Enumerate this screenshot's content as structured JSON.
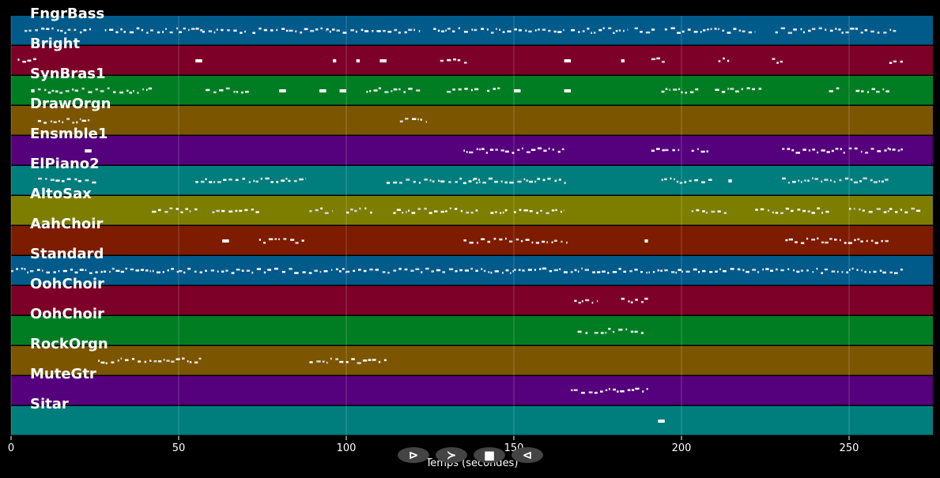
{
  "chart_data": {
    "type": "piano-roll",
    "xlabel": "Temps (secondes)",
    "xlim": [
      0,
      275
    ],
    "xticks": [
      0,
      50,
      100,
      150,
      200,
      250
    ],
    "grid": true,
    "tracks": [
      {
        "name": "FngrBass",
        "color": "#005a8a",
        "segments": [
          [
            4,
            24
          ],
          [
            28,
            58
          ],
          [
            57,
            70
          ],
          [
            72,
            94
          ],
          [
            94,
            122
          ],
          [
            126,
            142
          ],
          [
            142,
            165
          ],
          [
            167,
            184
          ],
          [
            186,
            192
          ],
          [
            195,
            222
          ],
          [
            228,
            264
          ]
        ]
      },
      {
        "name": "Bright",
        "color": "#7c0027",
        "segments": [
          [
            2,
            8
          ],
          [
            55,
            57
          ],
          [
            96,
            97
          ],
          [
            103,
            104
          ],
          [
            110,
            112
          ],
          [
            128,
            136
          ],
          [
            165,
            167
          ],
          [
            182,
            183
          ],
          [
            191,
            195
          ],
          [
            211,
            215
          ],
          [
            227,
            231
          ],
          [
            262,
            266
          ]
        ]
      },
      {
        "name": "SynBras1",
        "color": "#007d23",
        "segments": [
          [
            6,
            7
          ],
          [
            8,
            42
          ],
          [
            58,
            72
          ],
          [
            80,
            82
          ],
          [
            92,
            94
          ],
          [
            98,
            100
          ],
          [
            106,
            122
          ],
          [
            130,
            140
          ],
          [
            142,
            146
          ],
          [
            150,
            152
          ],
          [
            165,
            167
          ],
          [
            194,
            205
          ],
          [
            210,
            224
          ],
          [
            244,
            247
          ],
          [
            252,
            262
          ]
        ]
      },
      {
        "name": "DrawOrgn",
        "color": "#7c5500",
        "segments": [
          [
            8,
            24
          ],
          [
            116,
            124
          ]
        ]
      },
      {
        "name": "Ensmble1",
        "color": "#55007c",
        "segments": [
          [
            22,
            24
          ],
          [
            135,
            165
          ],
          [
            191,
            195
          ],
          [
            195,
            200
          ],
          [
            203,
            208
          ],
          [
            230,
            262
          ],
          [
            262,
            266
          ]
        ]
      },
      {
        "name": "ElPiano2",
        "color": "#007d7d",
        "segments": [
          [
            8,
            26
          ],
          [
            55,
            88
          ],
          [
            112,
            140
          ],
          [
            138,
            166
          ],
          [
            194,
            210
          ],
          [
            214,
            215
          ],
          [
            230,
            262
          ]
        ]
      },
      {
        "name": "AltoSax",
        "color": "#7d7d00",
        "segments": [
          [
            42,
            56
          ],
          [
            60,
            74
          ],
          [
            89,
            96
          ],
          [
            100,
            108
          ],
          [
            114,
            140
          ],
          [
            143,
            148
          ],
          [
            150,
            165
          ],
          [
            203,
            214
          ],
          [
            222,
            244
          ],
          [
            250,
            262
          ],
          [
            262,
            272
          ]
        ]
      },
      {
        "name": "AahChoir",
        "color": "#7d1c00",
        "segments": [
          [
            63,
            65
          ],
          [
            74,
            88
          ],
          [
            135,
            166
          ],
          [
            189,
            190
          ],
          [
            231,
            262
          ]
        ]
      },
      {
        "name": "Standard",
        "color": "#005a8a",
        "segments": [
          [
            0,
            50
          ],
          [
            50,
            100
          ],
          [
            100,
            150
          ],
          [
            150,
            200
          ],
          [
            200,
            250
          ],
          [
            250,
            266
          ]
        ]
      },
      {
        "name": "OohChoir",
        "color": "#7c0027",
        "segments": [
          [
            168,
            175
          ],
          [
            182,
            190
          ]
        ]
      },
      {
        "name": "OohChoir",
        "color": "#007d23",
        "segments": [
          [
            169,
            172
          ],
          [
            174,
            189
          ]
        ]
      },
      {
        "name": "RockOrgn",
        "color": "#7c5500",
        "segments": [
          [
            26,
            57
          ],
          [
            89,
            112
          ]
        ]
      },
      {
        "name": "MuteGtr",
        "color": "#55007c",
        "segments": [
          [
            167,
            190
          ]
        ]
      },
      {
        "name": "Sitar",
        "color": "#007d7d",
        "segments": [
          [
            193,
            195
          ]
        ]
      }
    ]
  },
  "controls": {
    "play_icon": "⊳",
    "forward_icon": "≻",
    "stop_icon": "■",
    "back_icon": "⊲"
  }
}
